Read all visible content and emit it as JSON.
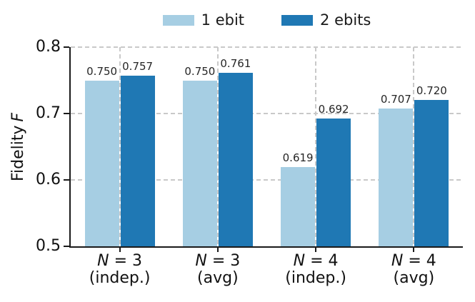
{
  "figure": {
    "background": "#ffffff"
  },
  "chart_data": {
    "type": "bar",
    "title": "",
    "xlabel": "",
    "ylabel": {
      "text": "Fidelity",
      "italic": "F"
    },
    "ylim": [
      0.5,
      0.8
    ],
    "yticks": [
      "0.5",
      "0.6",
      "0.7",
      "0.8"
    ],
    "grid": {
      "horizontal": true,
      "vertical": true,
      "style": "dashed",
      "color": "#c9c9c9"
    },
    "legend_position": "top-center",
    "categories": [
      {
        "prefix": "N",
        "rest": "= 3",
        "qualifier": "(indep.)"
      },
      {
        "prefix": "N",
        "rest": "= 3",
        "qualifier": "(avg)"
      },
      {
        "prefix": "N",
        "rest": "= 4",
        "qualifier": "(indep.)"
      },
      {
        "prefix": "N",
        "rest": "= 4",
        "qualifier": "(avg)"
      }
    ],
    "series": [
      {
        "name": "1 ebit",
        "color": "#a6cee3",
        "values": [
          0.75,
          0.75,
          0.619,
          0.707
        ],
        "labels": [
          "0.750",
          "0.750",
          "0.619",
          "0.707"
        ]
      },
      {
        "name": "2 ebits",
        "color": "#1f78b4",
        "values": [
          0.757,
          0.761,
          0.692,
          0.72
        ],
        "labels": [
          "0.757",
          "0.761",
          "0.692",
          "0.720"
        ]
      }
    ]
  }
}
